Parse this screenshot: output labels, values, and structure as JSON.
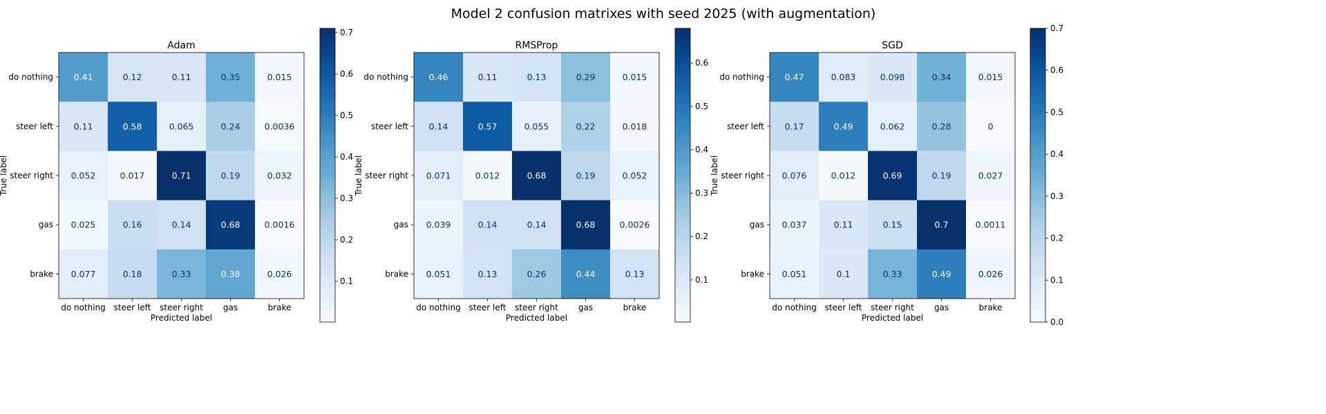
{
  "figure": {
    "title": "Model 2 confusion matrixes with seed 2025 (with augmentation)"
  },
  "chart_data": [
    {
      "type": "heatmap",
      "title": "Adam",
      "xlabel": "Predicted label",
      "ylabel": "True label",
      "x_categories": [
        "do nothing",
        "steer left",
        "steer right",
        "gas",
        "brake"
      ],
      "y_categories": [
        "do nothing",
        "steer left",
        "steer right",
        "gas",
        "brake"
      ],
      "values": [
        [
          0.41,
          0.12,
          0.11,
          0.35,
          0.015
        ],
        [
          0.11,
          0.58,
          0.065,
          0.24,
          0.0036
        ],
        [
          0.052,
          0.017,
          0.71,
          0.19,
          0.032
        ],
        [
          0.025,
          0.16,
          0.14,
          0.68,
          0.0016
        ],
        [
          0.077,
          0.18,
          0.33,
          0.38,
          0.026
        ]
      ],
      "value_labels": [
        [
          "0.41",
          "0.12",
          "0.11",
          "0.35",
          "0.015"
        ],
        [
          "0.11",
          "0.58",
          "0.065",
          "0.24",
          "0.0036"
        ],
        [
          "0.052",
          "0.017",
          "0.71",
          "0.19",
          "0.032"
        ],
        [
          "0.025",
          "0.16",
          "0.14",
          "0.68",
          "0.0016"
        ],
        [
          "0.077",
          "0.18",
          "0.33",
          "0.38",
          "0.026"
        ]
      ],
      "colormap": "Blues",
      "colorbar": {
        "range": [
          0.0016,
          0.71
        ],
        "ticks": [
          "0.1",
          "0.2",
          "0.3",
          "0.4",
          "0.5",
          "0.6",
          "0.7"
        ]
      }
    },
    {
      "type": "heatmap",
      "title": "RMSProp",
      "xlabel": "Predicted label",
      "ylabel": "True label",
      "x_categories": [
        "do nothing",
        "steer left",
        "steer right",
        "gas",
        "brake"
      ],
      "y_categories": [
        "do nothing",
        "steer left",
        "steer right",
        "gas",
        "brake"
      ],
      "values": [
        [
          0.46,
          0.11,
          0.13,
          0.29,
          0.015
        ],
        [
          0.14,
          0.57,
          0.055,
          0.22,
          0.018
        ],
        [
          0.071,
          0.012,
          0.68,
          0.19,
          0.052
        ],
        [
          0.039,
          0.14,
          0.14,
          0.68,
          0.0026
        ],
        [
          0.051,
          0.13,
          0.26,
          0.44,
          0.13
        ]
      ],
      "value_labels": [
        [
          "0.46",
          "0.11",
          "0.13",
          "0.29",
          "0.015"
        ],
        [
          "0.14",
          "0.57",
          "0.055",
          "0.22",
          "0.018"
        ],
        [
          "0.071",
          "0.012",
          "0.68",
          "0.19",
          "0.052"
        ],
        [
          "0.039",
          "0.14",
          "0.14",
          "0.68",
          "0.0026"
        ],
        [
          "0.051",
          "0.13",
          "0.26",
          "0.44",
          "0.13"
        ]
      ],
      "colormap": "Blues",
      "colorbar": {
        "range": [
          0.0026,
          0.68
        ],
        "ticks": [
          "0.1",
          "0.2",
          "0.3",
          "0.4",
          "0.5",
          "0.6"
        ]
      }
    },
    {
      "type": "heatmap",
      "title": "SGD",
      "xlabel": "Predicted label",
      "ylabel": "True label",
      "x_categories": [
        "do nothing",
        "steer left",
        "steer right",
        "gas",
        "brake"
      ],
      "y_categories": [
        "do nothing",
        "steer left",
        "steer right",
        "gas",
        "brake"
      ],
      "values": [
        [
          0.47,
          0.083,
          0.098,
          0.34,
          0.015
        ],
        [
          0.17,
          0.49,
          0.062,
          0.28,
          0
        ],
        [
          0.076,
          0.012,
          0.69,
          0.19,
          0.027
        ],
        [
          0.037,
          0.11,
          0.15,
          0.7,
          0.0011
        ],
        [
          0.051,
          0.1,
          0.33,
          0.49,
          0.026
        ]
      ],
      "value_labels": [
        [
          "0.47",
          "0.083",
          "0.098",
          "0.34",
          "0.015"
        ],
        [
          "0.17",
          "0.49",
          "0.062",
          "0.28",
          "0"
        ],
        [
          "0.076",
          "0.012",
          "0.69",
          "0.19",
          "0.027"
        ],
        [
          "0.037",
          "0.11",
          "0.15",
          "0.7",
          "0.0011"
        ],
        [
          "0.051",
          "0.1",
          "0.33",
          "0.49",
          "0.026"
        ]
      ],
      "colormap": "Blues",
      "colorbar": {
        "range": [
          0,
          0.7
        ],
        "ticks": [
          "0.0",
          "0.1",
          "0.2",
          "0.3",
          "0.4",
          "0.5",
          "0.6",
          "0.7"
        ]
      }
    }
  ]
}
